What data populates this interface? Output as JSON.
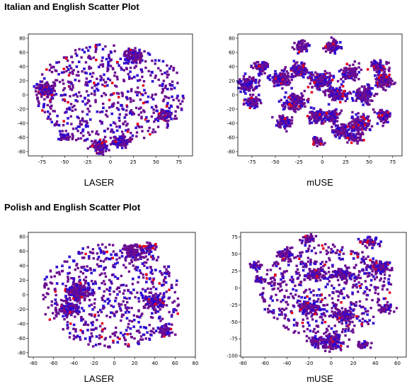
{
  "headings": {
    "top": "Italian and English Scatter Plot",
    "bottom": "Polish and English Scatter Plot"
  },
  "colors": {
    "marker_purple": "#6a0d91",
    "marker_red": "#ff0000",
    "marker_blue": "#0000ff"
  },
  "chart_data": [
    {
      "type": "scatter",
      "caption": "LASER",
      "xlim": [
        -90,
        90
      ],
      "ylim": [
        -86,
        86
      ],
      "xticks": [
        -75,
        -50,
        -25,
        0,
        25,
        50,
        75
      ],
      "yticks": [
        -80,
        -60,
        -40,
        -20,
        0,
        20,
        40,
        60,
        80
      ],
      "blob": {
        "cx": 0,
        "cy": 0,
        "rx": 82,
        "ry": 72
      },
      "clusters": [
        {
          "x": -50,
          "y": -60,
          "r": 5
        },
        {
          "x": -12,
          "y": -72,
          "r": 8
        },
        {
          "x": 12,
          "y": -65,
          "r": 7
        },
        {
          "x": 60,
          "y": -30,
          "r": 6
        },
        {
          "x": -72,
          "y": 8,
          "r": 8
        },
        {
          "x": 25,
          "y": 55,
          "r": 8
        }
      ],
      "seed": 11
    },
    {
      "type": "scatter",
      "caption": "mUSE",
      "xlim": [
        -90,
        85
      ],
      "ylim": [
        -86,
        86
      ],
      "xticks": [
        -75,
        -50,
        -25,
        0,
        25,
        50,
        75
      ],
      "yticks": [
        -80,
        -60,
        -40,
        -20,
        0,
        20,
        40,
        60,
        80
      ],
      "clusters": [
        {
          "x": -22,
          "y": 68,
          "r": 6
        },
        {
          "x": 10,
          "y": 68,
          "r": 7
        },
        {
          "x": -65,
          "y": 40,
          "r": 7
        },
        {
          "x": -80,
          "y": 15,
          "r": 9
        },
        {
          "x": -75,
          "y": -10,
          "r": 7
        },
        {
          "x": -45,
          "y": 22,
          "r": 9
        },
        {
          "x": -25,
          "y": 35,
          "r": 8
        },
        {
          "x": -40,
          "y": -38,
          "r": 7
        },
        {
          "x": -30,
          "y": -10,
          "r": 10
        },
        {
          "x": 0,
          "y": 20,
          "r": 10
        },
        {
          "x": 15,
          "y": 0,
          "r": 9
        },
        {
          "x": -5,
          "y": -30,
          "r": 8
        },
        {
          "x": 30,
          "y": 30,
          "r": 8
        },
        {
          "x": 60,
          "y": 40,
          "r": 7
        },
        {
          "x": 65,
          "y": 20,
          "r": 8
        },
        {
          "x": 45,
          "y": 0,
          "r": 9
        },
        {
          "x": 65,
          "y": -30,
          "r": 7
        },
        {
          "x": 40,
          "y": -40,
          "r": 9
        },
        {
          "x": 20,
          "y": -50,
          "r": 8
        },
        {
          "x": -5,
          "y": -65,
          "r": 5
        },
        {
          "x": 35,
          "y": -60,
          "r": 6
        },
        {
          "x": 10,
          "y": -30,
          "r": 7
        }
      ],
      "seed": 23
    },
    {
      "type": "scatter",
      "caption": "LASER",
      "xlim": [
        -85,
        80
      ],
      "ylim": [
        -86,
        86
      ],
      "xticks": [
        -80,
        -60,
        -40,
        -20,
        0,
        20,
        40,
        60,
        80
      ],
      "yticks": [
        -80,
        -60,
        -40,
        -20,
        0,
        20,
        40,
        60,
        80
      ],
      "blob": {
        "cx": -3,
        "cy": -2,
        "rx": 70,
        "ry": 72
      },
      "clusters": [
        {
          "x": -35,
          "y": 5,
          "r": 10
        },
        {
          "x": 20,
          "y": 60,
          "r": 8
        },
        {
          "x": 35,
          "y": 65,
          "r": 5
        },
        {
          "x": 40,
          "y": -10,
          "r": 8
        },
        {
          "x": 50,
          "y": -50,
          "r": 6
        },
        {
          "x": -45,
          "y": -20,
          "r": 8
        }
      ],
      "seed": 37
    },
    {
      "type": "scatter",
      "caption": "mUSE",
      "xlim": [
        -82,
        68
      ],
      "ylim": [
        -102,
        82
      ],
      "xticks": [
        -80,
        -60,
        -40,
        -20,
        0,
        20,
        40,
        60
      ],
      "yticks": [
        -100,
        -75,
        -50,
        -25,
        0,
        25,
        50,
        75
      ],
      "blob": {
        "cx": -5,
        "cy": -5,
        "rx": 60,
        "ry": 70
      },
      "clusters": [
        {
          "x": -68,
          "y": 32,
          "r": 5
        },
        {
          "x": -65,
          "y": 12,
          "r": 4
        },
        {
          "x": -42,
          "y": 50,
          "r": 6
        },
        {
          "x": -20,
          "y": 72,
          "r": 6
        },
        {
          "x": 35,
          "y": 68,
          "r": 6
        },
        {
          "x": -15,
          "y": 20,
          "r": 7
        },
        {
          "x": 10,
          "y": 20,
          "r": 7
        },
        {
          "x": 45,
          "y": 30,
          "r": 8
        },
        {
          "x": -20,
          "y": -30,
          "r": 7
        },
        {
          "x": 10,
          "y": -40,
          "r": 8
        },
        {
          "x": 50,
          "y": -30,
          "r": 5
        },
        {
          "x": 0,
          "y": -80,
          "r": 9
        },
        {
          "x": -15,
          "y": -80,
          "r": 5
        },
        {
          "x": 30,
          "y": -85,
          "r": 5
        }
      ],
      "seed": 53
    }
  ]
}
